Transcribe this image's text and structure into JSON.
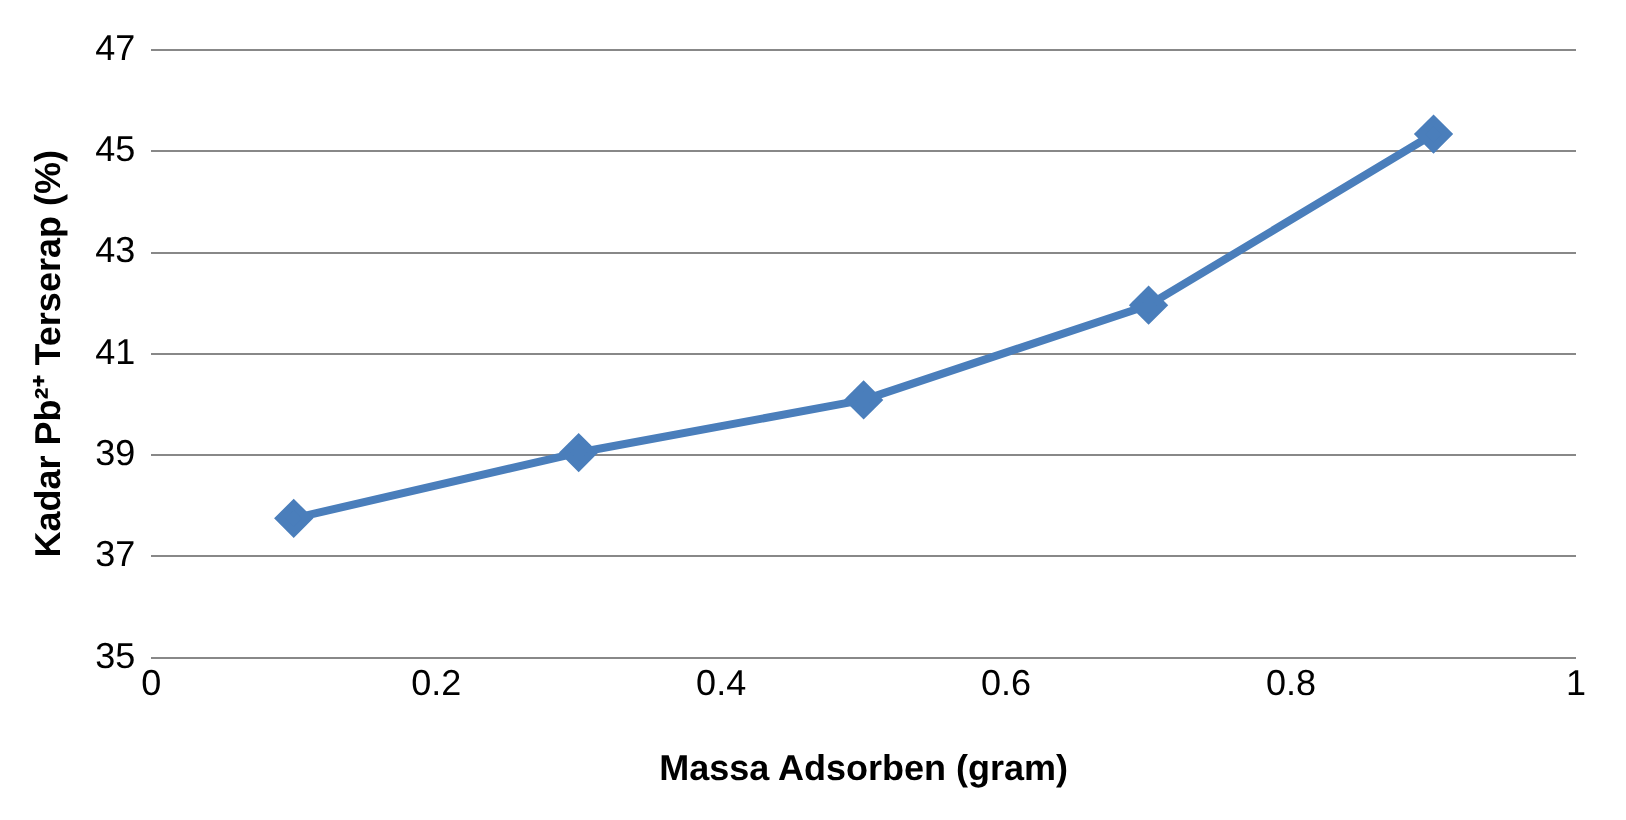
{
  "chart_data": {
    "type": "line",
    "xlabel": "Massa Adsorben (gram)",
    "ylabel": "Kadar Pb²⁺ Terserap (%)",
    "x": [
      0.1,
      0.3,
      0.5,
      0.7,
      0.9
    ],
    "series": [
      {
        "color": "#4a7ebb",
        "values": [
          37.75,
          39.05,
          40.09,
          41.96,
          45.34
        ]
      }
    ],
    "xlim": [
      0,
      1
    ],
    "xticks": [
      0,
      0.2,
      0.4,
      0.6,
      0.8,
      1
    ],
    "ylim": [
      35,
      47
    ],
    "yticks": [
      35,
      37,
      39,
      41,
      43,
      45,
      47
    ],
    "grid": "y",
    "legend": false,
    "marker": "diamond",
    "line_style": "solid"
  }
}
